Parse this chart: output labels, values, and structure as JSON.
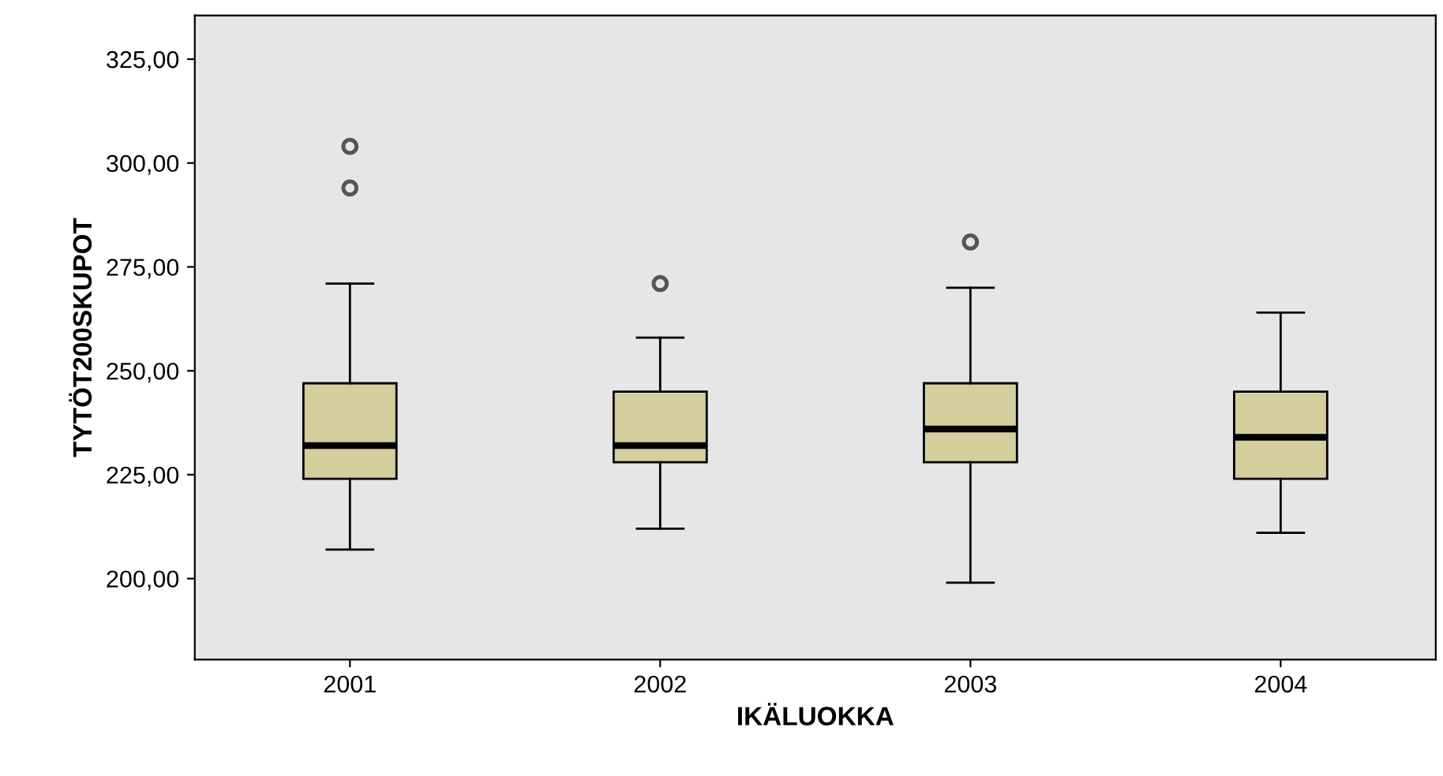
{
  "chart_data": {
    "type": "box",
    "xlabel": "IKÄLUOKKA",
    "ylabel": "TYTÖT200SKUPOT",
    "categories": [
      "2001",
      "2002",
      "2003",
      "2004"
    ],
    "boxes": [
      {
        "low": 207,
        "q1": 224,
        "median": 232,
        "q3": 247,
        "high": 271,
        "outliers": [
          304,
          294
        ]
      },
      {
        "low": 212,
        "q1": 228,
        "median": 232,
        "q3": 245,
        "high": 258,
        "outliers": [
          271
        ]
      },
      {
        "low": 199,
        "q1": 228,
        "median": 236,
        "q3": 247,
        "high": 270,
        "outliers": [
          281
        ]
      },
      {
        "low": 211,
        "q1": 224,
        "median": 234,
        "q3": 245,
        "high": 264
      }
    ],
    "color": "#d3ce9c",
    "ylim": [
      180.5,
      335.5
    ],
    "yticks": [
      {
        "value": 200,
        "label": "200,00"
      },
      {
        "value": 225,
        "label": "225,00"
      },
      {
        "value": 250,
        "label": "250,00"
      },
      {
        "value": 275,
        "label": "275,00"
      },
      {
        "value": 300,
        "label": "300,00"
      },
      {
        "value": 325,
        "label": "325,00"
      }
    ],
    "grid": false
  }
}
